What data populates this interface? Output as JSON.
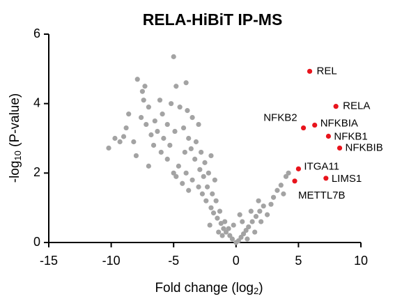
{
  "chart_data": {
    "type": "scatter",
    "title": "RELA-HiBiT IP-MS",
    "x_label": {
      "text": "Fold change (log",
      "sub": "2",
      "end": ")"
    },
    "y_label": {
      "text": "-log",
      "sub": "10",
      "end": " (P-value)"
    },
    "xlim": [
      -15,
      10
    ],
    "xticks": [
      -15,
      -10,
      -5,
      0,
      5,
      10
    ],
    "ylim": [
      0,
      6
    ],
    "yticks": [
      0,
      2,
      4,
      6
    ],
    "series": [
      {
        "color": "#a3a3a3",
        "x": [
          -10.2,
          -9.7,
          -8.8,
          -8.6,
          -9.0,
          -8.2,
          -7.9,
          -7.5,
          -7.3,
          -7.4,
          -7.6,
          -7.0,
          -6.8,
          -6.5,
          -6.3,
          -5.9,
          -5.5,
          -5.0,
          -4.8,
          -5.3,
          -4.5,
          -4.2,
          -4.0,
          -3.8,
          -3.5,
          -3.2,
          -3.0,
          -2.8,
          -2.5,
          -2.2,
          -6.0,
          -7.0,
          -8.0,
          -5.5,
          -4.6,
          -4.0,
          -3.5,
          -3.0,
          -2.7,
          -2.4,
          -2.0,
          -1.8,
          -1.5,
          -1.2,
          -1.0,
          -0.8,
          -0.5,
          -0.3,
          0.0,
          0.2,
          0.4,
          0.6,
          0.8,
          1.0,
          1.3,
          1.6,
          1.9,
          2.2,
          2.5,
          2.8,
          3.0,
          3.3,
          3.6,
          4.0,
          4.2,
          3.8,
          2.0,
          1.5,
          -3.8,
          -4.3,
          -4.8,
          -5.0,
          -2.9,
          -3.3,
          -2.3,
          -1.6,
          -1.9,
          -2.6,
          -1.3,
          -0.9,
          -0.6,
          -1.4,
          -2.1,
          0.5,
          1.2,
          1.8,
          -5.8,
          -6.6,
          -7.2,
          -9.3,
          -6.1,
          -4.9,
          -3.6,
          -2.0,
          -1.7,
          -4.1,
          -5.2,
          -3.9,
          -1.1,
          0.9,
          -0.2,
          0.3
        ],
        "y": [
          2.72,
          3.0,
          3.3,
          3.7,
          3.05,
          2.9,
          4.7,
          4.35,
          4.5,
          4.1,
          3.6,
          3.9,
          3.1,
          3.5,
          3.2,
          3.7,
          3.4,
          5.35,
          4.5,
          2.8,
          3.9,
          3.3,
          4.6,
          3.0,
          3.6,
          2.9,
          3.4,
          2.6,
          2.3,
          2.0,
          2.6,
          2.2,
          2.5,
          2.4,
          2.2,
          2.0,
          1.8,
          1.6,
          1.4,
          1.2,
          1.0,
          0.85,
          0.7,
          0.55,
          0.4,
          0.3,
          0.2,
          0.1,
          0.0,
          0.05,
          0.15,
          0.25,
          0.35,
          0.45,
          0.6,
          0.75,
          0.9,
          1.05,
          0.8,
          1.1,
          1.3,
          1.5,
          1.65,
          1.9,
          2.0,
          1.4,
          0.6,
          0.3,
          1.5,
          1.7,
          1.9,
          2.0,
          2.1,
          2.4,
          1.6,
          1.2,
          1.4,
          1.9,
          0.9,
          0.6,
          0.4,
          0.3,
          0.5,
          0.6,
          0.9,
          1.2,
          3.0,
          2.8,
          3.4,
          2.9,
          4.1,
          3.2,
          2.7,
          2.5,
          1.8,
          2.6,
          4.0,
          3.8,
          0.2,
          0.1,
          0.5,
          0.8
        ]
      },
      {
        "color": "#e8141c",
        "x": [
          5.9,
          8.0,
          6.3,
          5.4,
          7.4,
          8.3,
          5.0,
          7.2,
          4.7
        ],
        "y": [
          4.93,
          3.92,
          3.38,
          3.3,
          3.06,
          2.72,
          2.12,
          1.85,
          1.77
        ],
        "labels": [
          "REL",
          "RELA",
          "NFKBIA",
          "NFKB2",
          "NFKB1",
          "NFKBIB",
          "ITGA11",
          "LIMS1",
          "METTL7B"
        ]
      }
    ]
  }
}
